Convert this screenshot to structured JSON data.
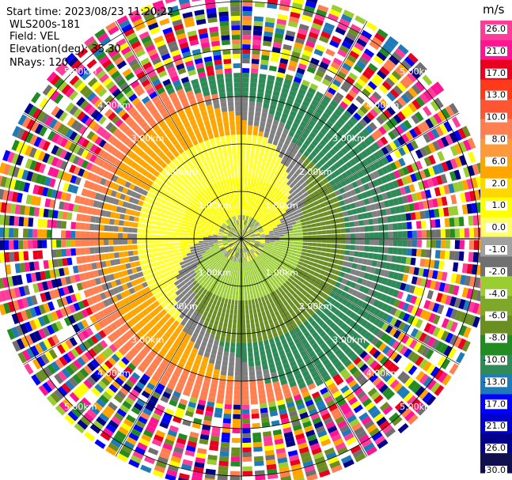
{
  "header": {
    "start_time": "Start time: 2023/08/23 11:20:22",
    "instrument": "WLS200s-181",
    "field": "Field: VEL",
    "elevation": "Elevation(deg): 35.30",
    "nrays": "NRays: 120"
  },
  "chart_data": {
    "type": "heatmap",
    "projection": "polar-ppi",
    "field": "VEL",
    "n_rays": 120,
    "elevation_deg": 35.3,
    "range_rings_km": [
      1.0,
      2.0,
      3.0,
      4.0,
      5.0
    ],
    "ring_labels": [
      "1.00km",
      "2.00km",
      "3.00km",
      "4.00km",
      "5.00km"
    ],
    "max_range_km": 5.3,
    "colorbar": {
      "unit": "m/s",
      "ticks": [
        "26.0",
        "21.0",
        "17.0",
        "13.0",
        "10.0",
        "8.0",
        "6.0",
        "2.0",
        "1.0",
        "0.0",
        "-1.0",
        "-2.0",
        "-4.0",
        "-6.0",
        "-8.0",
        "-10.0",
        "-13.0",
        "-17.0",
        "-21.0",
        "-26.0",
        "-30.0"
      ],
      "colors": [
        "#ff3c9a",
        "#ff1493",
        "#e8001e",
        "#ff3a1a",
        "#ff5533",
        "#ff7f50",
        "#ff9a3c",
        "#ffa500",
        "#ffd700",
        "#ffff00",
        "#ffff66",
        "#a0a0a0",
        "#707070",
        "#9acd32",
        "#7da82a",
        "#6b8e23",
        "#228b22",
        "#2e8b57",
        "#1e7ab8",
        "#0000ff",
        "#0000cd",
        "#00008b",
        "#101050"
      ]
    },
    "rings": [
      {
        "r_km": [
          0.0,
          0.5
        ],
        "description": "noisy center",
        "palette": [
          "#a0a0a0",
          "#6b8e23",
          "#ffff00",
          "#9acd32"
        ]
      },
      {
        "r_km": [
          0.5,
          1.3
        ],
        "north": "#ffff00",
        "south": "#9acd32",
        "mid": "#808080"
      },
      {
        "r_km": [
          1.3,
          2.2
        ],
        "north": "#ffff33",
        "south": "#6b8e23",
        "mid": "#808080"
      },
      {
        "r_km": [
          2.2,
          3.0
        ],
        "north": "#ffa500",
        "south": "#2e8b57",
        "mid": "#808080"
      },
      {
        "r_km": [
          3.0,
          3.5
        ],
        "north": "#ff7f50",
        "south": "#2e8b57",
        "mid": "#808080"
      },
      {
        "r_km": [
          3.5,
          5.3
        ],
        "description": "noise",
        "palette": [
          "#ff1493",
          "#ff3c9a",
          "#0000ff",
          "#00008b",
          "#ffff00",
          "#ff7f50",
          "#9acd32",
          "#228b22",
          "#e8001e",
          "#ffffff",
          "#707070",
          "#1e7ab8",
          "#ffa500",
          "#6b8e23"
        ]
      }
    ]
  }
}
